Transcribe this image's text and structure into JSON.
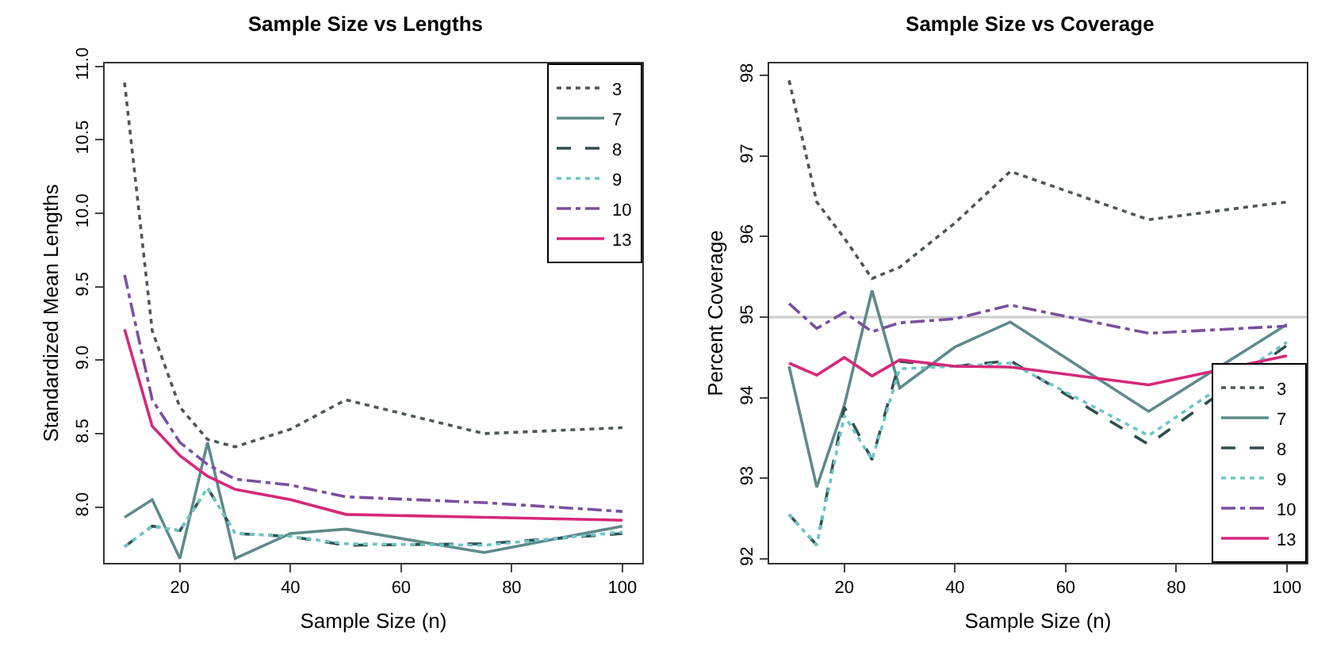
{
  "chart_data": [
    {
      "type": "line",
      "title": "Sample Size vs Lengths",
      "xlabel": "Sample Size (n)",
      "ylabel": "Standardized Mean Lengths",
      "x": [
        10,
        15,
        20,
        25,
        30,
        40,
        50,
        75,
        100
      ],
      "xlim": [
        6.4,
        103.6
      ],
      "xticks": [
        20,
        40,
        60,
        80,
        100
      ],
      "ylim": [
        7.62,
        11.02
      ],
      "yticks": [
        {
          "value": 8,
          "label": "8.0"
        },
        8.5,
        {
          "value": 9,
          "label": "9.0"
        },
        9.5,
        {
          "value": 10,
          "label": "10.0"
        },
        10.5,
        {
          "value": 11,
          "label": "11.0"
        }
      ],
      "grid": false,
      "legend": "top right",
      "marker": "none",
      "series": [
        {
          "name": "3",
          "color": "#4d5656",
          "line_style": "dotted",
          "values": [
            10.89,
            9.2,
            8.68,
            8.46,
            8.41,
            8.53,
            8.73,
            8.5,
            8.54
          ]
        },
        {
          "name": "7",
          "color": "#5f8a8b",
          "line_style": "solid",
          "values": [
            7.93,
            8.05,
            7.65,
            8.44,
            7.65,
            7.82,
            7.85,
            7.69,
            7.87
          ]
        },
        {
          "name": "8",
          "color": "#2f4f4f",
          "line_style": "dashed",
          "values": [
            7.73,
            7.87,
            7.84,
            8.13,
            7.82,
            7.8,
            7.74,
            7.75,
            7.82
          ]
        },
        {
          "name": "9",
          "color": "#6cc5c8",
          "line_style": "dotted",
          "values": [
            7.73,
            7.87,
            7.84,
            8.13,
            7.82,
            7.8,
            7.75,
            7.74,
            7.83
          ]
        },
        {
          "name": "10",
          "color": "#7b4fa0",
          "line_style": "dashdot",
          "values": [
            9.58,
            8.73,
            8.44,
            8.29,
            8.19,
            8.15,
            8.07,
            8.03,
            7.97
          ]
        },
        {
          "name": "13",
          "color": "#d6287a",
          "line_style": "solid",
          "values": [
            9.21,
            8.55,
            8.35,
            8.21,
            8.12,
            8.05,
            7.95,
            7.93,
            7.91
          ]
        }
      ]
    },
    {
      "type": "line",
      "title": "Sample Size vs Coverage",
      "xlabel": "Sample Size (n)",
      "ylabel": "Percent Coverage",
      "x": [
        10,
        15,
        20,
        25,
        30,
        40,
        50,
        75,
        100
      ],
      "xlim": [
        6.4,
        103.6
      ],
      "xticks": [
        20,
        40,
        60,
        80,
        100
      ],
      "ylim": [
        91.95,
        98.15
      ],
      "yticks": [
        92,
        93,
        94,
        95,
        96,
        97,
        98
      ],
      "grid": false,
      "legend": "bottom right",
      "marker": "none",
      "ref_lines": [
        {
          "axis": "y",
          "value": 95,
          "color": "#cccccc"
        }
      ],
      "series": [
        {
          "name": "3",
          "color": "#4d5656",
          "line_style": "dotted",
          "values": [
            97.94,
            96.43,
            95.98,
            95.48,
            95.62,
            96.17,
            96.81,
            96.21,
            96.43
          ]
        },
        {
          "name": "7",
          "color": "#5f8a8b",
          "line_style": "solid",
          "values": [
            94.39,
            92.89,
            93.91,
            95.33,
            94.12,
            94.63,
            94.94,
            93.83,
            94.91
          ]
        },
        {
          "name": "8",
          "color": "#2f4f4f",
          "line_style": "dashed",
          "values": [
            92.55,
            92.17,
            93.88,
            93.23,
            94.45,
            94.39,
            94.46,
            93.42,
            94.65
          ]
        },
        {
          "name": "9",
          "color": "#6cc5c8",
          "line_style": "dotted",
          "values": [
            92.55,
            92.17,
            93.78,
            93.23,
            94.36,
            94.39,
            94.43,
            93.53,
            94.69
          ]
        },
        {
          "name": "10",
          "color": "#7b4fa0",
          "line_style": "dashdot",
          "values": [
            95.17,
            94.86,
            95.06,
            94.82,
            94.93,
            94.98,
            95.15,
            94.8,
            94.89
          ]
        },
        {
          "name": "13",
          "color": "#d6287a",
          "line_style": "solid",
          "values": [
            94.43,
            94.28,
            94.5,
            94.27,
            94.47,
            94.39,
            94.38,
            94.16,
            94.52
          ]
        }
      ]
    }
  ]
}
